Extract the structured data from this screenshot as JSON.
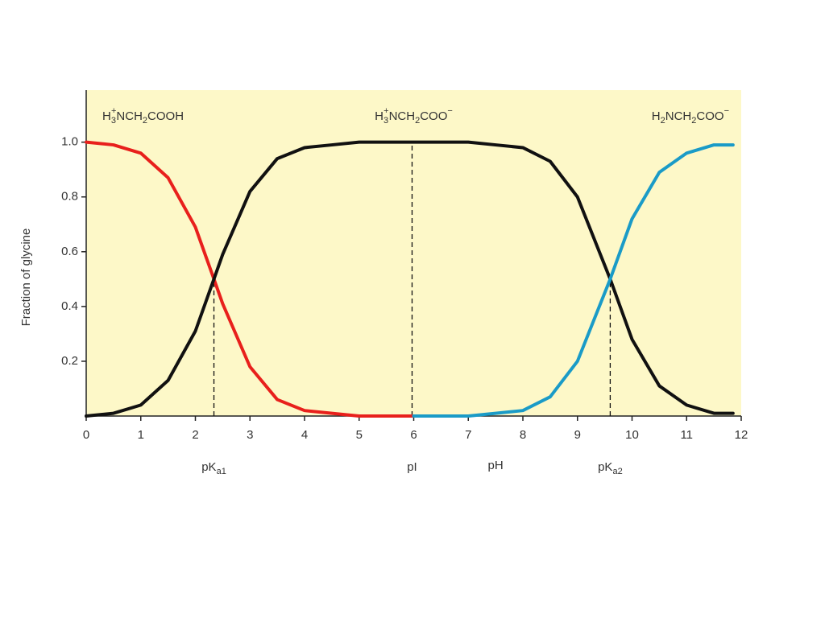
{
  "chart_data": {
    "type": "line",
    "y_label": "Fraction of glycine",
    "x_label": "pH",
    "xlim": [
      0,
      12
    ],
    "ylim": [
      0,
      1.19
    ],
    "xticks": [
      0,
      1,
      2,
      3,
      4,
      5,
      6,
      7,
      8,
      9,
      10,
      11,
      12
    ],
    "yticks": [
      0.2,
      0.4,
      0.6,
      0.8,
      {
        "value": 1,
        "label": "1.0"
      }
    ],
    "background": "#fdf8c8",
    "series": [
      {
        "color": "#e8201c",
        "x": [
          0,
          0.5,
          1,
          1.5,
          2,
          2.34,
          2.5,
          3,
          3.5,
          4,
          4.5,
          5,
          5.5,
          6
        ],
        "values": [
          1,
          0.99,
          0.96,
          0.87,
          0.69,
          0.5,
          0.41,
          0.18,
          0.06,
          0.02,
          0.01,
          0,
          0,
          0
        ]
      },
      {
        "color": "#111111",
        "x": [
          0,
          0.5,
          1,
          1.5,
          2,
          2.34,
          2.5,
          3,
          3.5,
          4,
          4.5,
          5,
          5.5,
          6,
          6.5,
          7,
          7.5,
          8,
          8.5,
          9,
          9.6,
          10,
          10.5,
          11,
          11.5,
          11.85
        ],
        "values": [
          0,
          0.01,
          0.04,
          0.13,
          0.31,
          0.5,
          0.59,
          0.82,
          0.94,
          0.98,
          0.99,
          1,
          1,
          1,
          1,
          1,
          0.99,
          0.98,
          0.93,
          0.8,
          0.5,
          0.28,
          0.11,
          0.04,
          0.01,
          0.01
        ]
      },
      {
        "color": "#1a9bc7",
        "x": [
          6,
          6.5,
          7,
          7.5,
          8,
          8.5,
          9,
          9.6,
          10,
          10.5,
          11,
          11.5,
          11.85
        ],
        "values": [
          0,
          0,
          0,
          0.01,
          0.02,
          0.07,
          0.2,
          0.5,
          0.72,
          0.89,
          0.96,
          0.99,
          0.99
        ]
      }
    ],
    "species_labels": [
      [
        {
          "t": "H"
        },
        {
          "t": "3",
          "pos": "sub"
        },
        {
          "t": "+",
          "pos": "sup"
        },
        {
          "t": "NCH"
        },
        {
          "t": "2",
          "pos": "sub"
        },
        {
          "t": "COOH"
        }
      ],
      [
        {
          "t": "H"
        },
        {
          "t": "3",
          "pos": "sub"
        },
        {
          "t": "+",
          "pos": "sup"
        },
        {
          "t": "NCH"
        },
        {
          "t": "2",
          "pos": "sub"
        },
        {
          "t": "COO"
        },
        {
          "t": "−",
          "pos": "sup"
        }
      ],
      [
        {
          "t": "H"
        },
        {
          "t": "2",
          "pos": "sub"
        },
        {
          "t": "NCH"
        },
        {
          "t": "2",
          "pos": "sub"
        },
        {
          "t": "COO"
        },
        {
          "t": "−",
          "pos": "sup"
        }
      ]
    ],
    "markers": [
      {
        "x": 2.34,
        "y": 0.5,
        "label": [
          {
            "t": "pK"
          },
          {
            "t": "a1",
            "pos": "sub"
          }
        ]
      },
      {
        "x": 5.97,
        "y": 1,
        "label": [
          {
            "t": "pI"
          }
        ]
      },
      {
        "x": 9.6,
        "y": 0.5,
        "label": [
          {
            "t": "pK"
          },
          {
            "t": "a2",
            "pos": "sub"
          }
        ]
      }
    ]
  }
}
